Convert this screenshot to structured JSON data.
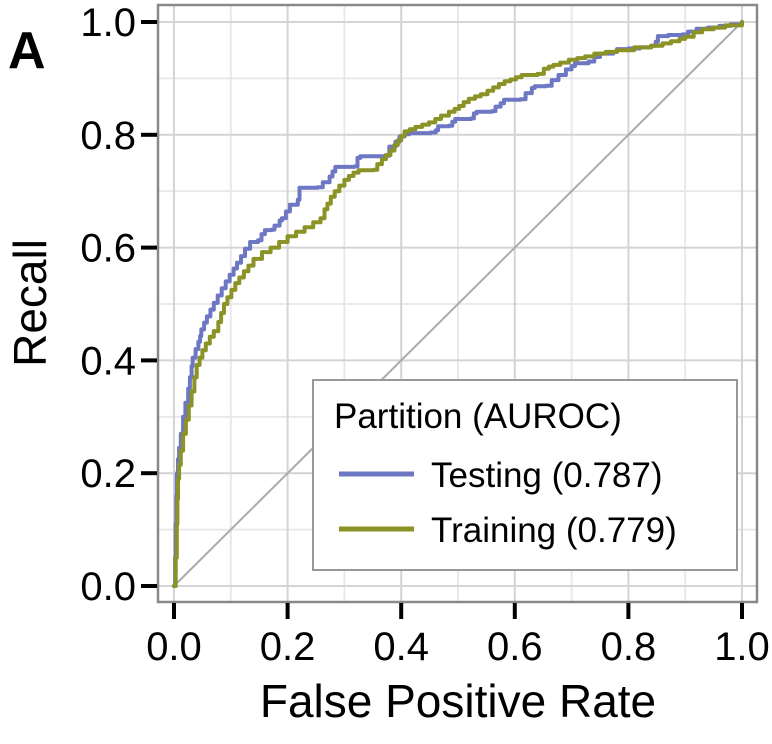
{
  "panel_label": "A",
  "colors": {
    "testing": "#6e77c3",
    "training": "#8b9226",
    "diagonal": "#ababab",
    "grid_major": "#d4d4d4",
    "grid_minor": "#e7e7e7",
    "panel_border": "#898989",
    "legend_border": "#999999",
    "tick": "#000000",
    "background": "#ffffff"
  },
  "legend": {
    "title": "Partition (AUROC)",
    "items": [
      {
        "label": "Testing (0.787)",
        "color_key": "testing"
      },
      {
        "label": "Training (0.779)",
        "color_key": "training"
      }
    ]
  },
  "chart_data": {
    "type": "line",
    "title": "",
    "xlabel": "False Positive Rate",
    "ylabel": "Recall",
    "xlim": [
      0,
      1
    ],
    "ylim": [
      0,
      1
    ],
    "grid": true,
    "legend_position": "inside-bottom-right",
    "x_ticks": [
      0.0,
      0.2,
      0.4,
      0.6,
      0.8,
      1.0
    ],
    "y_ticks": [
      0.0,
      0.2,
      0.4,
      0.6,
      0.8,
      1.0
    ],
    "x_tick_labels": [
      "0.0",
      "0.2",
      "0.4",
      "0.6",
      "0.8",
      "1.0"
    ],
    "y_tick_labels": [
      "0.0",
      "0.2",
      "0.4",
      "0.6",
      "0.8",
      "1.0"
    ],
    "minor_gridlines": [
      0.1,
      0.3,
      0.5,
      0.7,
      0.9
    ],
    "reference_line": {
      "from": [
        0,
        0
      ],
      "to": [
        1,
        1
      ]
    },
    "series": [
      {
        "name": "Testing",
        "auroc": 0.787,
        "color_key": "testing",
        "points": [
          [
            0,
            0
          ],
          [
            0.002,
            0.05
          ],
          [
            0.003,
            0.11
          ],
          [
            0.004,
            0.16
          ],
          [
            0.005,
            0.2
          ],
          [
            0.007,
            0.225
          ],
          [
            0.009,
            0.245
          ],
          [
            0.012,
            0.27
          ],
          [
            0.016,
            0.3
          ],
          [
            0.02,
            0.325
          ],
          [
            0.025,
            0.35
          ],
          [
            0.028,
            0.37
          ],
          [
            0.031,
            0.39
          ],
          [
            0.033,
            0.405
          ],
          [
            0.038,
            0.42
          ],
          [
            0.043,
            0.433
          ],
          [
            0.046,
            0.443
          ],
          [
            0.048,
            0.455
          ],
          [
            0.053,
            0.467
          ],
          [
            0.058,
            0.478
          ],
          [
            0.064,
            0.49
          ],
          [
            0.07,
            0.502
          ],
          [
            0.077,
            0.515
          ],
          [
            0.084,
            0.528
          ],
          [
            0.091,
            0.54
          ],
          [
            0.098,
            0.552
          ],
          [
            0.105,
            0.563
          ],
          [
            0.111,
            0.573
          ],
          [
            0.118,
            0.585
          ],
          [
            0.125,
            0.598
          ],
          [
            0.134,
            0.61
          ],
          [
            0.148,
            0.613
          ],
          [
            0.154,
            0.624
          ],
          [
            0.16,
            0.631
          ],
          [
            0.172,
            0.632
          ],
          [
            0.177,
            0.639
          ],
          [
            0.186,
            0.648
          ],
          [
            0.19,
            0.652
          ],
          [
            0.204,
            0.676
          ],
          [
            0.218,
            0.685
          ],
          [
            0.221,
            0.706
          ],
          [
            0.253,
            0.707
          ],
          [
            0.262,
            0.716
          ],
          [
            0.274,
            0.726
          ],
          [
            0.279,
            0.735
          ],
          [
            0.284,
            0.743
          ],
          [
            0.318,
            0.744
          ],
          [
            0.323,
            0.759
          ],
          [
            0.328,
            0.762
          ],
          [
            0.372,
            0.763
          ],
          [
            0.379,
            0.779
          ],
          [
            0.39,
            0.788
          ],
          [
            0.397,
            0.797
          ],
          [
            0.406,
            0.801
          ],
          [
            0.414,
            0.803
          ],
          [
            0.452,
            0.804
          ],
          [
            0.461,
            0.808
          ],
          [
            0.465,
            0.815
          ],
          [
            0.484,
            0.816
          ],
          [
            0.49,
            0.823
          ],
          [
            0.495,
            0.828
          ],
          [
            0.523,
            0.829
          ],
          [
            0.528,
            0.838
          ],
          [
            0.533,
            0.841
          ],
          [
            0.56,
            0.842
          ],
          [
            0.566,
            0.85
          ],
          [
            0.575,
            0.856
          ],
          [
            0.581,
            0.862
          ],
          [
            0.61,
            0.863
          ],
          [
            0.619,
            0.874
          ],
          [
            0.63,
            0.883
          ],
          [
            0.635,
            0.886
          ],
          [
            0.655,
            0.887
          ],
          [
            0.665,
            0.897
          ],
          [
            0.677,
            0.906
          ],
          [
            0.69,
            0.916
          ],
          [
            0.7,
            0.922
          ],
          [
            0.706,
            0.927
          ],
          [
            0.73,
            0.93
          ],
          [
            0.74,
            0.938
          ],
          [
            0.75,
            0.944
          ],
          [
            0.773,
            0.947
          ],
          [
            0.78,
            0.952
          ],
          [
            0.8,
            0.953
          ],
          [
            0.82,
            0.955
          ],
          [
            0.84,
            0.958
          ],
          [
            0.848,
            0.965
          ],
          [
            0.852,
            0.975
          ],
          [
            0.87,
            0.977
          ],
          [
            0.895,
            0.978
          ],
          [
            0.905,
            0.983
          ],
          [
            0.92,
            0.988
          ],
          [
            0.94,
            0.99
          ],
          [
            0.96,
            0.993
          ],
          [
            0.98,
            0.996
          ],
          [
            1,
            1
          ]
        ]
      },
      {
        "name": "Training",
        "auroc": 0.779,
        "color_key": "training",
        "points": [
          [
            0,
            0
          ],
          [
            0.003,
            0.05
          ],
          [
            0.005,
            0.11
          ],
          [
            0.006,
            0.155
          ],
          [
            0.007,
            0.19
          ],
          [
            0.009,
            0.215
          ],
          [
            0.012,
            0.24
          ],
          [
            0.016,
            0.27
          ],
          [
            0.021,
            0.295
          ],
          [
            0.026,
            0.32
          ],
          [
            0.031,
            0.345
          ],
          [
            0.036,
            0.37
          ],
          [
            0.04,
            0.392
          ],
          [
            0.045,
            0.405
          ],
          [
            0.05,
            0.418
          ],
          [
            0.056,
            0.43
          ],
          [
            0.063,
            0.442
          ],
          [
            0.07,
            0.452
          ],
          [
            0.078,
            0.468
          ],
          [
            0.083,
            0.484
          ],
          [
            0.088,
            0.5
          ],
          [
            0.094,
            0.512
          ],
          [
            0.101,
            0.525
          ],
          [
            0.108,
            0.537
          ],
          [
            0.115,
            0.547
          ],
          [
            0.123,
            0.558
          ],
          [
            0.131,
            0.568
          ],
          [
            0.14,
            0.58
          ],
          [
            0.155,
            0.592
          ],
          [
            0.17,
            0.6
          ],
          [
            0.185,
            0.61
          ],
          [
            0.2,
            0.62
          ],
          [
            0.215,
            0.628
          ],
          [
            0.23,
            0.636
          ],
          [
            0.245,
            0.645
          ],
          [
            0.258,
            0.652
          ],
          [
            0.265,
            0.668
          ],
          [
            0.27,
            0.678
          ],
          [
            0.276,
            0.69
          ],
          [
            0.283,
            0.7
          ],
          [
            0.291,
            0.71
          ],
          [
            0.3,
            0.72
          ],
          [
            0.308,
            0.727
          ],
          [
            0.316,
            0.733
          ],
          [
            0.325,
            0.737
          ],
          [
            0.352,
            0.738
          ],
          [
            0.358,
            0.748
          ],
          [
            0.366,
            0.757
          ],
          [
            0.373,
            0.764
          ],
          [
            0.381,
            0.772
          ],
          [
            0.388,
            0.782
          ],
          [
            0.394,
            0.79
          ],
          [
            0.4,
            0.798
          ],
          [
            0.406,
            0.806
          ],
          [
            0.415,
            0.81
          ],
          [
            0.425,
            0.814
          ],
          [
            0.437,
            0.818
          ],
          [
            0.449,
            0.822
          ],
          [
            0.46,
            0.828
          ],
          [
            0.47,
            0.834
          ],
          [
            0.484,
            0.841
          ],
          [
            0.494,
            0.846
          ],
          [
            0.502,
            0.851
          ],
          [
            0.51,
            0.858
          ],
          [
            0.519,
            0.864
          ],
          [
            0.53,
            0.868
          ],
          [
            0.54,
            0.872
          ],
          [
            0.552,
            0.878
          ],
          [
            0.562,
            0.884
          ],
          [
            0.572,
            0.89
          ],
          [
            0.582,
            0.895
          ],
          [
            0.592,
            0.898
          ],
          [
            0.602,
            0.902
          ],
          [
            0.612,
            0.906
          ],
          [
            0.64,
            0.908
          ],
          [
            0.651,
            0.917
          ],
          [
            0.66,
            0.921
          ],
          [
            0.668,
            0.924
          ],
          [
            0.68,
            0.928
          ],
          [
            0.695,
            0.933
          ],
          [
            0.71,
            0.936
          ],
          [
            0.724,
            0.939
          ],
          [
            0.74,
            0.944
          ],
          [
            0.76,
            0.947
          ],
          [
            0.78,
            0.95
          ],
          [
            0.81,
            0.955
          ],
          [
            0.84,
            0.958
          ],
          [
            0.86,
            0.962
          ],
          [
            0.875,
            0.966
          ],
          [
            0.89,
            0.97
          ],
          [
            0.9,
            0.974
          ],
          [
            0.915,
            0.982
          ],
          [
            0.93,
            0.987
          ],
          [
            0.95,
            0.99
          ],
          [
            0.97,
            0.994
          ],
          [
            1,
            1
          ]
        ]
      }
    ]
  }
}
